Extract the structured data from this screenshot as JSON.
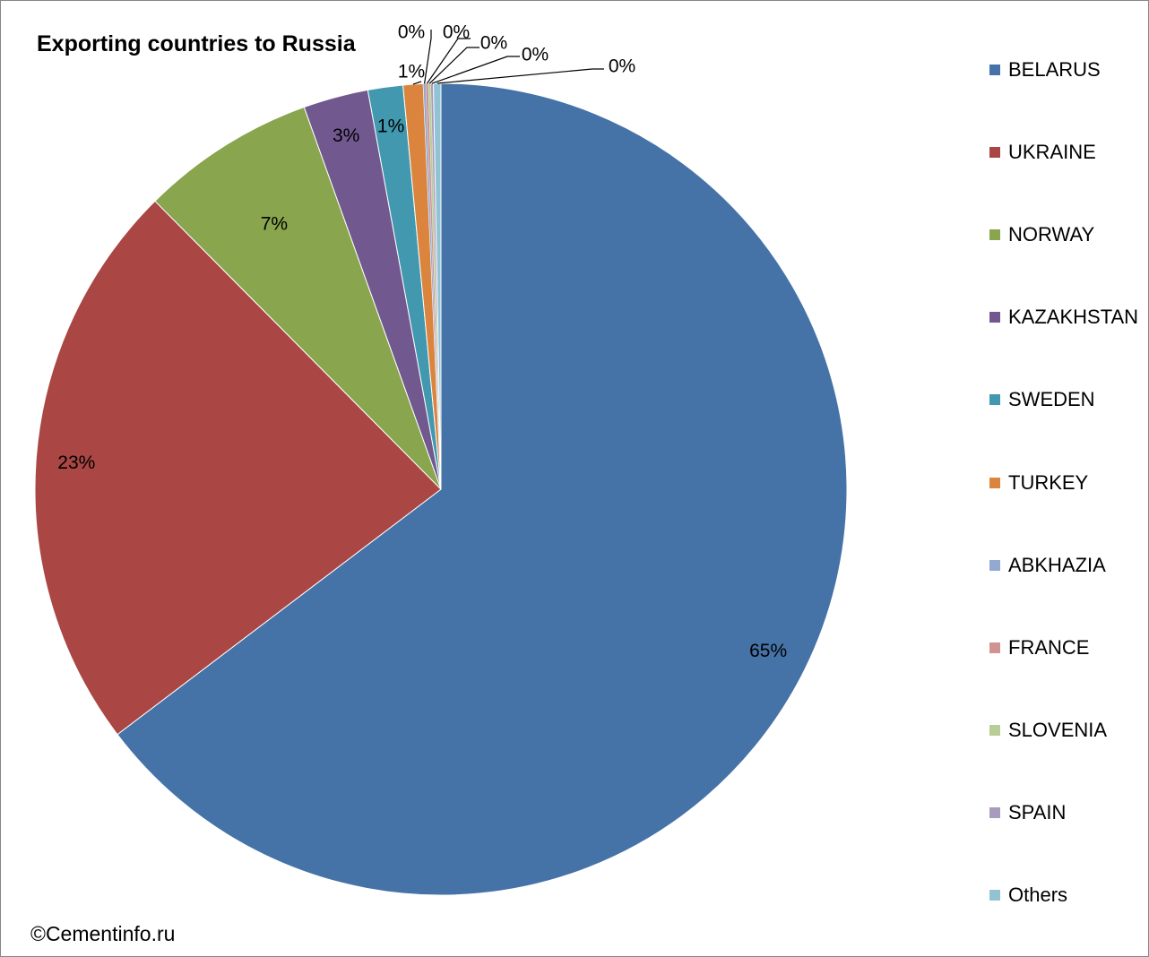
{
  "chart_data": {
    "type": "pie",
    "title": "Exporting countries to Russia",
    "categories": [
      "BELARUS",
      "UKRAINE",
      "NORWAY",
      "KAZAKHSTAN",
      "SWEDEN",
      "TURKEY",
      "ABKHAZIA",
      "FRANCE",
      "SLOVENIA",
      "SPAIN",
      "Others"
    ],
    "values": [
      65.0,
      23.0,
      7.0,
      2.6,
      1.4,
      0.8,
      0.1,
      0.1,
      0.1,
      0.1,
      0.3
    ],
    "labels": [
      "65%",
      "23%",
      "7%",
      "3%",
      "1%",
      "1%",
      "0%",
      "0%",
      "0%",
      "0%",
      "0%"
    ],
    "colors": [
      "#4572A7",
      "#AA4643",
      "#89A54E",
      "#71588F",
      "#4198AF",
      "#DB843D",
      "#93A9CF",
      "#D19392",
      "#B9CD96",
      "#A99BBD",
      "#92C3D4"
    ],
    "legend_position": "right",
    "start_angle_deg": 0,
    "direction": "clockwise-from-top"
  },
  "credit": "©Cementinfo.ru"
}
